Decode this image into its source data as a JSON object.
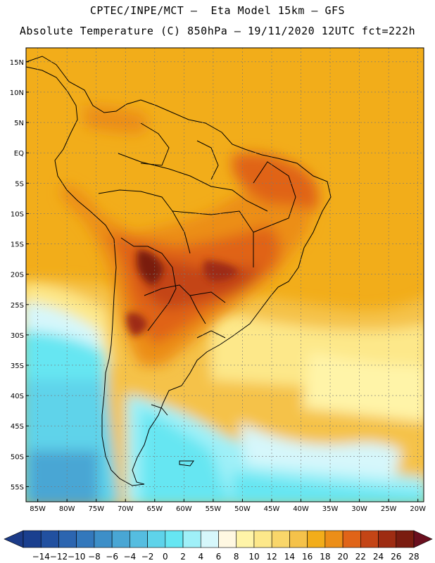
{
  "header": {
    "line1": "CPTEC/INPE/MCT –  Eta Model 15km – GFS",
    "line2": "Absolute Temperature (C) 850hPa – 19/11/2020 12UTC fct=222h"
  },
  "axes": {
    "lat_labels": [
      "15N",
      "10N",
      "5N",
      "EQ",
      "5S",
      "10S",
      "15S",
      "20S",
      "25S",
      "30S",
      "35S",
      "40S",
      "45S",
      "50S",
      "55S"
    ],
    "lat_values": [
      15,
      10,
      5,
      0,
      -5,
      -10,
      -15,
      -20,
      -25,
      -30,
      -35,
      -40,
      -45,
      -50,
      -55
    ],
    "lon_labels": [
      "85W",
      "80W",
      "75W",
      "70W",
      "65W",
      "60W",
      "55W",
      "50W",
      "45W",
      "40W",
      "35W",
      "30W",
      "25W",
      "20W"
    ],
    "lon_values": [
      -85,
      -80,
      -75,
      -70,
      -65,
      -60,
      -55,
      -50,
      -45,
      -40,
      -35,
      -30,
      -25,
      -20
    ]
  },
  "colorbar": {
    "labels": [
      "-14",
      "-12",
      "-10",
      "-8",
      "-6",
      "-4",
      "-2",
      "0",
      "2",
      "4",
      "6",
      "8",
      "10",
      "12",
      "14",
      "16",
      "18",
      "20",
      "22",
      "24",
      "26",
      "28"
    ],
    "colors": [
      "#1a3f8f",
      "#2150a0",
      "#2c65b0",
      "#3378bc",
      "#3d8fc8",
      "#49a6d4",
      "#55bde0",
      "#5ed3ea",
      "#66e6f2",
      "#9ff0f8",
      "#d6f7fb",
      "#fff8e2",
      "#fff4a8",
      "#fde88a",
      "#f9d66a",
      "#f5c24a",
      "#f2ad1a",
      "#ec8e18",
      "#e06418",
      "#c44516",
      "#9e2c12",
      "#7a1c10"
    ],
    "under_color": "#1c3b88",
    "over_color": "#6a0f1e"
  }
}
